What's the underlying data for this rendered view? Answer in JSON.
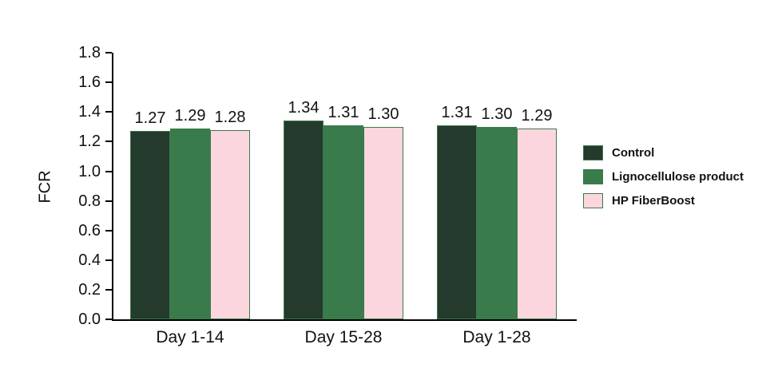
{
  "chart_data": {
    "type": "bar",
    "title": "",
    "xlabel": "",
    "ylabel": "FCR",
    "ylim": [
      0.0,
      1.8
    ],
    "ytick_step": 0.2,
    "ytick_labels": [
      "0.0",
      "0.2",
      "0.4",
      "0.6",
      "0.8",
      "1.0",
      "1.2",
      "1.4",
      "1.6",
      "1.8"
    ],
    "grid": false,
    "legend_position": "right",
    "categories": [
      "Day 1-14",
      "Day 15-28",
      "Day 1-28"
    ],
    "series": [
      {
        "name": "Control",
        "color": "#243a2c",
        "values": [
          1.27,
          1.34,
          1.31
        ]
      },
      {
        "name": "Lignocellulose product",
        "color": "#3a7b4b",
        "values": [
          1.29,
          1.31,
          1.3
        ]
      },
      {
        "name": "HP FiberBoost",
        "color": "#fcd6de",
        "values": [
          1.28,
          1.3,
          1.29
        ]
      }
    ],
    "value_labels": [
      [
        "1.27",
        "1.34",
        "1.31"
      ],
      [
        "1.29",
        "1.31",
        "1.30"
      ],
      [
        "1.28",
        "1.30",
        "1.29"
      ]
    ],
    "bar_border_color": "#3a7b4b"
  },
  "colors": {
    "axis": "#000000",
    "text": "#111111",
    "background": "#ffffff"
  }
}
